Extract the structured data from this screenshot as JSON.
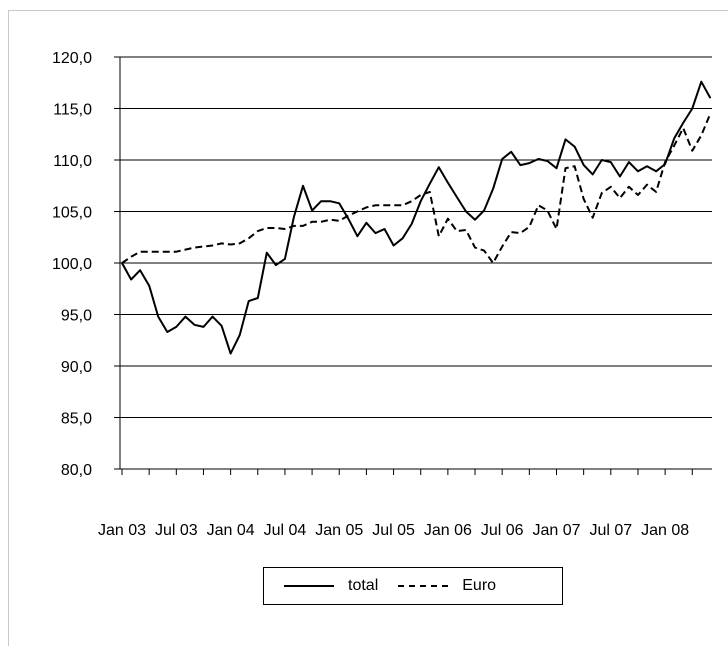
{
  "chart_data": {
    "type": "line",
    "title": "",
    "xlabel": "",
    "ylabel": "",
    "ylim": [
      80,
      120
    ],
    "ytick_step": 5,
    "ytick_labels": [
      "80,0",
      "85,0",
      "90,0",
      "95,0",
      "100,0",
      "105,0",
      "110,0",
      "115,0",
      "120,0"
    ],
    "grid": true,
    "legend_position": "bottom",
    "x_tick_labels": [
      "Jan 03",
      "Jul 03",
      "Jan 04",
      "Jul 04",
      "Jan 05",
      "Jul 05",
      "Jan 06",
      "Jul 06",
      "Jan 07",
      "Jul 07",
      "Jan 08"
    ],
    "x_label_months": [
      0,
      6,
      12,
      18,
      24,
      30,
      36,
      42,
      48,
      54,
      60
    ],
    "series": [
      {
        "name": "total",
        "style": "solid",
        "color": "#000000",
        "values": [
          100.0,
          98.4,
          99.3,
          97.8,
          94.8,
          93.3,
          93.8,
          94.8,
          94.0,
          93.8,
          94.8,
          93.9,
          91.2,
          93.0,
          96.3,
          96.6,
          101.0,
          99.8,
          100.4,
          104.5,
          107.5,
          105.1,
          106.0,
          106.0,
          105.8,
          104.3,
          102.6,
          103.9,
          102.9,
          103.3,
          101.7,
          102.4,
          103.8,
          106.0,
          107.7,
          109.3,
          107.8,
          106.4,
          105.0,
          104.2,
          105.1,
          107.2,
          110.1,
          110.8,
          109.5,
          109.7,
          110.1,
          109.9,
          109.2,
          112.0,
          111.3,
          109.5,
          108.6,
          110.0,
          109.8,
          108.4,
          109.8,
          108.9,
          109.4,
          108.9,
          109.6,
          112.1,
          113.6,
          115.0,
          117.6,
          116.0
        ]
      },
      {
        "name": "Euro",
        "style": "dashed",
        "color": "#000000",
        "values": [
          100.0,
          100.6,
          101.1,
          101.1,
          101.1,
          101.1,
          101.1,
          101.3,
          101.5,
          101.6,
          101.7,
          101.9,
          101.8,
          101.9,
          102.4,
          103.1,
          103.4,
          103.4,
          103.3,
          103.6,
          103.6,
          104.0,
          104.0,
          104.2,
          104.1,
          104.6,
          105.0,
          105.4,
          105.6,
          105.6,
          105.6,
          105.6,
          106.0,
          106.6,
          106.9,
          102.6,
          104.3,
          103.1,
          103.2,
          101.5,
          101.2,
          100.0,
          101.6,
          103.0,
          102.9,
          103.5,
          105.6,
          105.1,
          103.3,
          109.2,
          109.4,
          106.2,
          104.4,
          106.8,
          107.4,
          106.3,
          107.4,
          106.6,
          107.6,
          106.9,
          109.8,
          111.4,
          113.1,
          110.9,
          112.4,
          114.5
        ]
      }
    ]
  }
}
